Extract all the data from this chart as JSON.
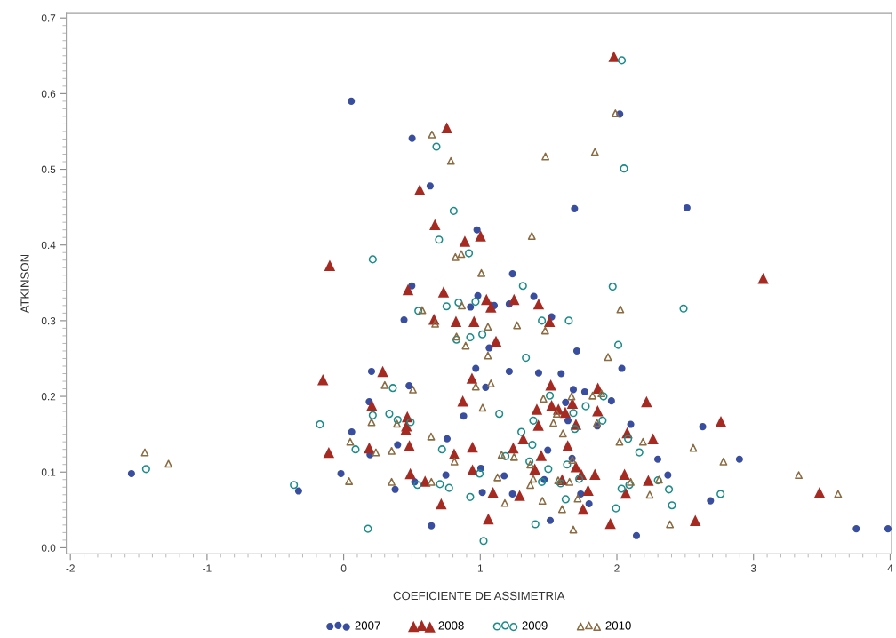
{
  "chart_data": {
    "type": "scatter",
    "xlabel": "COEFICIENTE DE ASSIMETRIA",
    "ylabel": "ATKINSON",
    "xlim": [
      -2.03,
      4.01
    ],
    "ylim": [
      -0.008,
      0.706
    ],
    "xticks": [
      -2,
      -1,
      0,
      1,
      2,
      3,
      4
    ],
    "yticks": [
      {
        "value": 0,
        "label": "0.0"
      },
      0.1,
      0.2,
      0.3,
      0.4,
      0.5,
      0.6,
      0.7
    ],
    "grid": false,
    "legend": "bottom",
    "series": [
      {
        "name": "2007",
        "color": "#3a4ea0",
        "marker": "circle",
        "x": [
          -1.553,
          -0.33,
          -0.02,
          0.059,
          0.056,
          0.501,
          0.633,
          0.976,
          1.69,
          2.513,
          2.021,
          1.236,
          0.499,
          1.392,
          0.982,
          0.928,
          1.102,
          1.212,
          0.442,
          1.065,
          0.204,
          0.967,
          1.212,
          0.479,
          1.039,
          0.187,
          0.878,
          0.193,
          0.395,
          0.757,
          0.377,
          0.52,
          0.748,
          1.004,
          1.175,
          1.015,
          1.236,
          0.642,
          1.522,
          1.707,
          2.036,
          1.427,
          1.592,
          1.681,
          1.765,
          1.96,
          1.624,
          1.642,
          1.856,
          2.101,
          2.628,
          2.299,
          1.494,
          1.468,
          1.672,
          2.373,
          1.735,
          1.796,
          1.512,
          2.143,
          2.685,
          2.897,
          3.752,
          3.984
        ],
        "values": [
          0.098,
          0.075,
          0.098,
          0.153,
          0.59,
          0.541,
          0.478,
          0.42,
          0.448,
          0.449,
          0.573,
          0.362,
          0.346,
          0.332,
          0.333,
          0.318,
          0.32,
          0.322,
          0.301,
          0.264,
          0.233,
          0.237,
          0.233,
          0.214,
          0.212,
          0.193,
          0.174,
          0.123,
          0.136,
          0.144,
          0.077,
          0.087,
          0.096,
          0.105,
          0.095,
          0.073,
          0.071,
          0.029,
          0.305,
          0.26,
          0.237,
          0.231,
          0.23,
          0.209,
          0.206,
          0.194,
          0.192,
          0.168,
          0.161,
          0.163,
          0.16,
          0.117,
          0.129,
          0.09,
          0.118,
          0.096,
          0.071,
          0.058,
          0.036,
          0.016,
          0.062,
          0.117,
          0.025,
          0.025
        ]
      },
      {
        "name": "2008",
        "color": "#a52a22",
        "marker": "triangle",
        "x": [
          -0.102,
          -0.152,
          -0.109,
          1.978,
          0.755,
          0.557,
          0.668,
          0.887,
          1.002,
          3.071,
          0.471,
          0.731,
          1.045,
          1.078,
          1.247,
          0.661,
          0.822,
          0.954,
          1.115,
          0.286,
          0.939,
          0.872,
          0.206,
          0.466,
          0.46,
          0.455,
          0.187,
          0.481,
          0.809,
          0.943,
          1.241,
          1.314,
          0.488,
          0.596,
          0.943,
          1.093,
          1.288,
          0.714,
          1.059,
          1.427,
          1.507,
          1.516,
          1.861,
          2.217,
          1.414,
          1.522,
          1.572,
          1.674,
          1.622,
          1.859,
          1.425,
          1.7,
          2.075,
          2.264,
          1.64,
          1.446,
          1.399,
          1.7,
          1.739,
          1.839,
          1.599,
          2.056,
          2.065,
          2.23,
          1.789,
          1.752,
          1.952,
          2.574,
          2.761,
          3.483
        ],
        "values": [
          0.373,
          0.222,
          0.126,
          0.649,
          0.555,
          0.473,
          0.427,
          0.405,
          0.412,
          0.356,
          0.341,
          0.338,
          0.328,
          0.318,
          0.328,
          0.302,
          0.299,
          0.299,
          0.273,
          0.233,
          0.224,
          0.194,
          0.188,
          0.173,
          0.161,
          0.156,
          0.132,
          0.135,
          0.124,
          0.133,
          0.132,
          0.144,
          0.098,
          0.088,
          0.103,
          0.073,
          0.069,
          0.058,
          0.038,
          0.322,
          0.299,
          0.215,
          0.211,
          0.193,
          0.183,
          0.188,
          0.183,
          0.191,
          0.179,
          0.181,
          0.162,
          0.163,
          0.152,
          0.144,
          0.135,
          0.122,
          0.104,
          0.107,
          0.097,
          0.097,
          0.09,
          0.097,
          0.072,
          0.089,
          0.076,
          0.051,
          0.032,
          0.036,
          0.167,
          0.073
        ]
      },
      {
        "name": "2009",
        "color": "#1a8c8a",
        "marker": "circle",
        "x": [
          -1.446,
          -0.364,
          -0.174,
          0.087,
          2.036,
          0.679,
          2.052,
          0.805,
          0.698,
          0.213,
          0.917,
          1.312,
          0.753,
          0.841,
          0.965,
          0.547,
          0.826,
          0.926,
          1.015,
          1.334,
          0.36,
          0.213,
          0.334,
          0.395,
          0.49,
          1.139,
          0.72,
          1.184,
          1.301,
          1.381,
          1.36,
          1.388,
          0.54,
          0.705,
          0.772,
          0.995,
          0.926,
          0.178,
          1.024,
          1.403,
          1.969,
          2.488,
          1.451,
          1.648,
          2.01,
          1.902,
          1.509,
          1.772,
          1.681,
          1.692,
          1.895,
          2.082,
          2.164,
          1.498,
          1.451,
          1.635,
          1.724,
          1.588,
          2.091,
          2.034,
          2.3,
          2.381,
          2.403,
          1.625,
          1.993,
          2.759
        ],
        "values": [
          0.104,
          0.083,
          0.163,
          0.13,
          0.644,
          0.53,
          0.501,
          0.445,
          0.407,
          0.381,
          0.389,
          0.346,
          0.319,
          0.324,
          0.325,
          0.313,
          0.275,
          0.278,
          0.282,
          0.251,
          0.211,
          0.175,
          0.177,
          0.169,
          0.166,
          0.177,
          0.13,
          0.121,
          0.153,
          0.136,
          0.114,
          0.168,
          0.083,
          0.084,
          0.079,
          0.098,
          0.067,
          0.025,
          0.009,
          0.031,
          0.345,
          0.316,
          0.3,
          0.3,
          0.268,
          0.2,
          0.201,
          0.187,
          0.178,
          0.157,
          0.168,
          0.144,
          0.126,
          0.104,
          0.087,
          0.11,
          0.091,
          0.085,
          0.083,
          0.078,
          0.089,
          0.077,
          0.056,
          0.064,
          0.052,
          0.071
        ]
      },
      {
        "name": "2010",
        "color": "#8b6b42",
        "marker": "triangle",
        "x": [
          -1.455,
          -1.282,
          0.039,
          0.048,
          1.989,
          0.646,
          0.785,
          1.477,
          1.839,
          1.377,
          0.818,
          0.861,
          1.008,
          0.865,
          0.575,
          0.67,
          1.056,
          1.269,
          0.826,
          0.893,
          1.056,
          0.301,
          0.507,
          0.967,
          1.078,
          1.017,
          0.39,
          0.204,
          0.236,
          0.351,
          0.64,
          0.811,
          1.156,
          1.247,
          0.351,
          0.642,
          1.126,
          1.18,
          1.475,
          2.025,
          1.935,
          1.887,
          1.822,
          1.668,
          1.462,
          1.56,
          1.535,
          1.854,
          2.019,
          2.191,
          2.559,
          1.605,
          1.366,
          1.388,
          1.366,
          1.674,
          1.57,
          1.653,
          2.101,
          2.308,
          2.24,
          1.455,
          1.713,
          1.599,
          1.681,
          2.388,
          2.78,
          3.331,
          3.619
        ],
        "values": [
          0.126,
          0.111,
          0.088,
          0.14,
          0.574,
          0.546,
          0.511,
          0.517,
          0.523,
          0.412,
          0.384,
          0.388,
          0.363,
          0.32,
          0.314,
          0.296,
          0.292,
          0.294,
          0.279,
          0.267,
          0.254,
          0.215,
          0.209,
          0.213,
          0.217,
          0.185,
          0.164,
          0.166,
          0.126,
          0.128,
          0.147,
          0.114,
          0.123,
          0.12,
          0.087,
          0.087,
          0.093,
          0.059,
          0.287,
          0.315,
          0.252,
          0.204,
          0.201,
          0.2,
          0.197,
          0.177,
          0.165,
          0.165,
          0.14,
          0.14,
          0.132,
          0.151,
          0.11,
          0.091,
          0.083,
          0.116,
          0.089,
          0.087,
          0.087,
          0.09,
          0.07,
          0.062,
          0.065,
          0.051,
          0.024,
          0.031,
          0.114,
          0.096,
          0.071
        ]
      }
    ]
  }
}
